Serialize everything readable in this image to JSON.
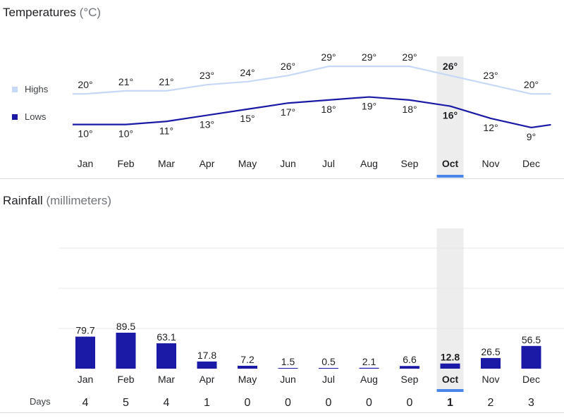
{
  "temperature_section": {
    "title": "Temperatures",
    "unit": "(°C)",
    "legend": {
      "highs_label": "Highs",
      "lows_label": "Lows"
    }
  },
  "rainfall_section": {
    "title": "Rainfall",
    "unit": "(millimeters)",
    "days_label": "Days"
  },
  "selected_month": "Oct",
  "colors": {
    "highs": "#c6d8f6",
    "lows": "#1a1aa6",
    "bars": "#1a1aa6",
    "selected_underline": "#4a86e8",
    "selected_band": "#ededed",
    "grid": "#e8e8e8"
  },
  "chart_data": [
    {
      "type": "line",
      "title": "Temperatures",
      "xlabel": "",
      "ylabel": "",
      "categories": [
        "Jan",
        "Feb",
        "Mar",
        "Apr",
        "May",
        "Jun",
        "Jul",
        "Aug",
        "Sep",
        "Oct",
        "Nov",
        "Dec"
      ],
      "series": [
        {
          "name": "Highs",
          "values": [
            20,
            21,
            21,
            23,
            24,
            26,
            29,
            29,
            29,
            26,
            23,
            20
          ],
          "labels": [
            "20°",
            "21°",
            "21°",
            "23°",
            "24°",
            "26°",
            "29°",
            "29°",
            "29°",
            "26°",
            "23°",
            "20°"
          ]
        },
        {
          "name": "Lows",
          "values": [
            10,
            10,
            11,
            13,
            15,
            17,
            18,
            19,
            18,
            16,
            12,
            9
          ],
          "labels": [
            "10°",
            "10°",
            "11°",
            "13°",
            "15°",
            "17°",
            "18°",
            "19°",
            "18°",
            "16°",
            "12°",
            "9°"
          ]
        }
      ],
      "legend": "left",
      "grid": false
    },
    {
      "type": "bar",
      "title": "Rainfall",
      "xlabel": "",
      "ylabel": "",
      "categories": [
        "Jan",
        "Feb",
        "Mar",
        "Apr",
        "May",
        "Jun",
        "Jul",
        "Aug",
        "Sep",
        "Oct",
        "Nov",
        "Dec"
      ],
      "values": [
        79.7,
        89.5,
        63.1,
        17.8,
        7.2,
        1.5,
        0.5,
        2.1,
        6.6,
        12.8,
        26.5,
        56.5
      ],
      "value_labels": [
        "79.7",
        "89.5",
        "63.1",
        "17.8",
        "7.2",
        "1.5",
        "0.5",
        "2.1",
        "6.6",
        "12.8",
        "26.5",
        "56.5"
      ],
      "days": [
        "4",
        "5",
        "4",
        "1",
        "0",
        "0",
        "0",
        "0",
        "0",
        "1",
        "2",
        "3"
      ],
      "ylim": [
        0,
        300
      ],
      "grid": true
    }
  ]
}
